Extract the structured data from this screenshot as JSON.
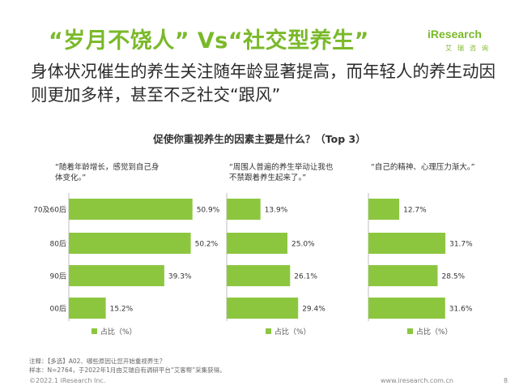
{
  "header": {
    "headline": "“岁月不饶人” Vs“社交型养生”",
    "subheadline": "身体状况催生的养生关注随年龄显著提高，而年轻人的养生动因则更加多样，甚至不乏社交“跟风”"
  },
  "logo": {
    "main": "iResearch",
    "sub": "艾瑞咨询"
  },
  "colors": {
    "accent": "#7ab929",
    "bar": "#8cc63f",
    "axis": "#bfbfbf"
  },
  "chart_data": {
    "type": "bar",
    "orientation": "horizontal",
    "title": "促使你重视养生的因素主要是什么？（Top 3）",
    "categories": [
      "70及60后",
      "80后",
      "90后",
      "00后"
    ],
    "value_suffix": "%",
    "xlim": [
      0,
      60
    ],
    "grid": false,
    "legend_label": "占比（%）",
    "panels": [
      {
        "label": "“随着年龄增长，感觉到自己身体变化。”",
        "values": [
          50.9,
          50.2,
          39.3,
          15.2
        ],
        "value_labels": [
          "50.9%",
          "50.2%",
          "39.3%",
          "15.2%"
        ]
      },
      {
        "label": "“周围人普遍的养生举动让我也不禁跟着养生起来了。”",
        "values": [
          13.9,
          25.0,
          26.1,
          29.4
        ],
        "value_labels": [
          "13.9%",
          "25.0%",
          "26.1%",
          "29.4%"
        ]
      },
      {
        "label": "“自己的精神、心理压力渐大。”",
        "values": [
          12.7,
          31.7,
          28.5,
          31.6
        ],
        "value_labels": [
          "12.7%",
          "31.7%",
          "28.5%",
          "31.6%"
        ]
      }
    ]
  },
  "notes": {
    "line1": "注释：【多选】A02、哪些原因让您开始重视养生？",
    "line2": "样本：N=2764，于2022年1月由艾瑞自有调研平台“艾客帮”采集获得。"
  },
  "footer": {
    "copyright": "©2022.1 iResearch Inc.",
    "url": "www.iresearch.com.cn",
    "page": "8"
  }
}
